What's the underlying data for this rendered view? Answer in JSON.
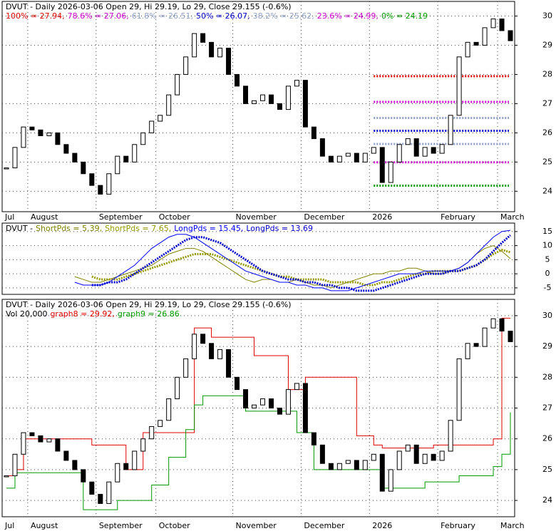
{
  "chart_data": [
    {
      "type": "candlestick",
      "title": "DVUT - Daily 2026-03-06 Open 29, Hi 29.19, Lo 29, Close 29.155 (-0.6%)",
      "categories": [
        "Jul",
        null,
        null,
        "August",
        null,
        null,
        null,
        null,
        null,
        null,
        null,
        "September",
        null,
        null,
        null,
        null,
        null,
        null,
        "October",
        null,
        null,
        null,
        null,
        null,
        null,
        null,
        null,
        "November",
        null,
        null,
        null,
        null,
        null,
        null,
        null,
        "December",
        null,
        null,
        null,
        null,
        null,
        null,
        null,
        "2026",
        null,
        null,
        null,
        null,
        null,
        null,
        null,
        "February",
        null,
        null,
        null,
        null,
        null,
        null,
        "March",
        null
      ],
      "values": [
        24.8,
        25.5,
        26.2,
        26.1,
        25.9,
        26.0,
        25.6,
        25.3,
        25.0,
        24.6,
        24.2,
        23.9,
        24.6,
        25.2,
        25.0,
        25.6,
        26.0,
        26.4,
        26.6,
        27.3,
        28.0,
        28.6,
        29.4,
        29.1,
        28.6,
        28.9,
        28.0,
        27.6,
        27.0,
        27.1,
        27.3,
        27.0,
        26.8,
        27.6,
        27.8,
        26.2,
        25.8,
        25.2,
        25.0,
        25.2,
        25.3,
        25.0,
        25.3,
        25.5,
        24.3,
        25.0,
        25.6,
        25.8,
        25.2,
        25.5,
        25.3,
        25.6,
        26.6,
        28.6,
        29.1,
        29.0,
        29.6,
        29.9,
        29.5,
        29.155
      ],
      "up_color": "#ffffff",
      "down_color": "#000000",
      "levels": [
        {
          "label": "100% = 27.94,",
          "value": 27.94,
          "color": "#e00000"
        },
        {
          "label": "78.6% = 27.06,",
          "value": 27.06,
          "color": "#cc00cc"
        },
        {
          "label": "61.8% = 26.51,",
          "value": 26.51,
          "color": "#8fa0c8"
        },
        {
          "label": "50% = 26.07,",
          "value": 26.07,
          "color": "#0000cc"
        },
        {
          "label": "38.2% = 25.62,",
          "value": 25.62,
          "color": "#8fa0c8"
        },
        {
          "label": "23.6% = 24.99,",
          "value": 24.99,
          "color": "#cc00cc"
        },
        {
          "label": "0% = 24.19",
          "value": 24.19,
          "color": "#009900"
        }
      ],
      "ylim": [
        23.3,
        30.5
      ],
      "yticks": [
        24,
        25,
        26,
        27,
        28,
        29,
        30
      ],
      "grid": true
    },
    {
      "type": "line",
      "title": "DVUT -",
      "series": [
        {
          "label": "ShortPds = 5.39,",
          "color": "#808000",
          "style": "line",
          "values": [
            null,
            null,
            null,
            null,
            null,
            null,
            null,
            null,
            -1,
            -2,
            -3,
            -3,
            -2,
            -1,
            0,
            1,
            2,
            3,
            5,
            7,
            8,
            9,
            9,
            8,
            6,
            4,
            2,
            0,
            -2,
            -3,
            -2,
            -2,
            -3,
            -3,
            -2,
            -3,
            -4,
            -4,
            -5,
            -4,
            -3,
            -2,
            -1,
            0,
            0,
            1,
            1,
            2,
            2,
            1,
            0,
            0,
            1,
            2,
            4,
            7,
            9,
            10,
            8,
            5.39
          ]
        },
        {
          "label": "ShortPds = 7.65,",
          "color": "#999900",
          "style": "dots",
          "values": [
            null,
            null,
            null,
            null,
            null,
            null,
            null,
            null,
            null,
            null,
            -1,
            -2,
            -2,
            -2,
            -1,
            0,
            1,
            2,
            3,
            4,
            5,
            6,
            7,
            7,
            7,
            6,
            5,
            4,
            3,
            2,
            1,
            0,
            -1,
            -1,
            -2,
            -2,
            -2,
            -2,
            -3,
            -3,
            -3,
            -3,
            -4,
            -4,
            -3,
            -3,
            -2,
            -1,
            0,
            0,
            1,
            1,
            1,
            1,
            2,
            3,
            5,
            7,
            8.5,
            7.65
          ]
        },
        {
          "label": "LongPds = 15.45,",
          "color": "#0000ff",
          "style": "line",
          "values": [
            null,
            null,
            null,
            null,
            null,
            null,
            null,
            null,
            -3,
            -4,
            -4,
            -4,
            -3,
            -1,
            1,
            3,
            6,
            9,
            11,
            13,
            14,
            14,
            13,
            11,
            9,
            7,
            5,
            3,
            1,
            0,
            -1,
            -2,
            -3,
            -3,
            -4,
            -4,
            -5,
            -5,
            -6,
            -6,
            -6,
            -5,
            -4,
            -3,
            -2,
            -1,
            0,
            0,
            0,
            1,
            1,
            1,
            1,
            2,
            4,
            7,
            10,
            13,
            15,
            15.45
          ]
        },
        {
          "label": "LongPds = 13.69",
          "color": "#0000cc",
          "style": "dots",
          "values": [
            null,
            null,
            null,
            null,
            null,
            null,
            null,
            null,
            null,
            null,
            -4,
            -4,
            -3,
            -3,
            -2,
            0,
            2,
            4,
            6,
            8,
            10,
            12,
            13,
            13,
            12,
            11,
            9,
            7,
            5,
            3,
            1,
            0,
            -1,
            -2,
            -2,
            -3,
            -3,
            -4,
            -4,
            -5,
            -5,
            -6,
            -6,
            -6,
            -5,
            -4,
            -3,
            -2,
            -1,
            0,
            0,
            0,
            1,
            1,
            2,
            3,
            5,
            8,
            11,
            13.69
          ]
        }
      ],
      "ylim": [
        -7.3,
        18
      ],
      "yticks": [
        -5,
        0,
        5,
        10,
        15
      ],
      "grid": true
    },
    {
      "type": "candlestick",
      "title": "DVUT - Daily 2026-03-06 Open 29, Hi 29.19, Lo 29, Close 29.155 (-0.6%)",
      "volume_label": "Vol 20,000",
      "categories": [
        "Jul",
        null,
        null,
        "August",
        null,
        null,
        null,
        null,
        null,
        null,
        null,
        "September",
        null,
        null,
        null,
        null,
        null,
        null,
        "October",
        null,
        null,
        null,
        null,
        null,
        null,
        null,
        null,
        "November",
        null,
        null,
        null,
        null,
        null,
        null,
        null,
        "December",
        null,
        null,
        null,
        null,
        null,
        null,
        null,
        "2026",
        null,
        null,
        null,
        null,
        null,
        null,
        null,
        "February",
        null,
        null,
        null,
        null,
        null,
        null,
        "March",
        null
      ],
      "values": [
        24.8,
        25.5,
        26.2,
        26.1,
        25.9,
        26.0,
        25.6,
        25.3,
        25.0,
        24.6,
        24.2,
        23.9,
        24.6,
        25.2,
        25.0,
        25.6,
        26.0,
        26.4,
        26.6,
        27.3,
        28.0,
        28.6,
        29.4,
        29.1,
        28.6,
        28.9,
        28.0,
        27.6,
        27.0,
        27.1,
        27.3,
        27.0,
        26.8,
        27.6,
        27.8,
        26.2,
        25.8,
        25.2,
        25.0,
        25.2,
        25.3,
        25.0,
        25.3,
        25.5,
        24.3,
        25.0,
        25.6,
        25.8,
        25.2,
        25.5,
        25.3,
        25.6,
        26.6,
        28.6,
        29.1,
        29.0,
        29.6,
        29.9,
        29.5,
        29.155
      ],
      "up_color": "#ffffff",
      "down_color": "#000000",
      "series": [
        {
          "label": "graph8 = 29.92,",
          "color": "#e00000",
          "values": [
            24.8,
            25.0,
            26.0,
            26.0,
            26.0,
            26.0,
            26.0,
            26.0,
            26.0,
            26.0,
            25.8,
            25.8,
            25.8,
            25.8,
            25.0,
            25.0,
            26.2,
            26.2,
            26.2,
            26.2,
            26.2,
            26.2,
            29.6,
            29.6,
            29.3,
            29.3,
            29.3,
            29.3,
            29.3,
            28.7,
            28.7,
            28.7,
            28.7,
            27.6,
            27.6,
            28.0,
            28.0,
            28.0,
            28.0,
            28.0,
            28.0,
            26.1,
            26.1,
            25.8,
            25.7,
            25.7,
            25.7,
            25.7,
            25.7,
            25.7,
            25.8,
            25.8,
            25.8,
            25.8,
            25.8,
            25.8,
            25.8,
            26.0,
            29.92,
            29.92
          ]
        },
        {
          "label": "graph9 = 26.86",
          "color": "#009900",
          "values": [
            24.4,
            24.9,
            24.9,
            24.9,
            24.9,
            24.9,
            24.9,
            24.9,
            24.9,
            23.7,
            23.7,
            23.7,
            23.7,
            24.0,
            24.0,
            24.0,
            24.0,
            24.5,
            24.5,
            25.4,
            25.4,
            26.3,
            27.1,
            27.4,
            27.4,
            27.4,
            27.4,
            27.4,
            26.9,
            26.9,
            26.9,
            26.9,
            26.9,
            26.9,
            26.2,
            26.2,
            25.0,
            25.0,
            25.0,
            25.0,
            25.0,
            25.0,
            25.0,
            25.0,
            24.4,
            24.4,
            24.4,
            24.4,
            24.4,
            24.6,
            24.6,
            24.6,
            24.6,
            24.8,
            24.8,
            24.8,
            24.8,
            25.1,
            25.5,
            26.86
          ]
        }
      ],
      "ylim": [
        23.47,
        30.53
      ],
      "yticks": [
        24,
        25,
        26,
        27,
        28,
        29,
        30
      ],
      "grid": true
    }
  ]
}
